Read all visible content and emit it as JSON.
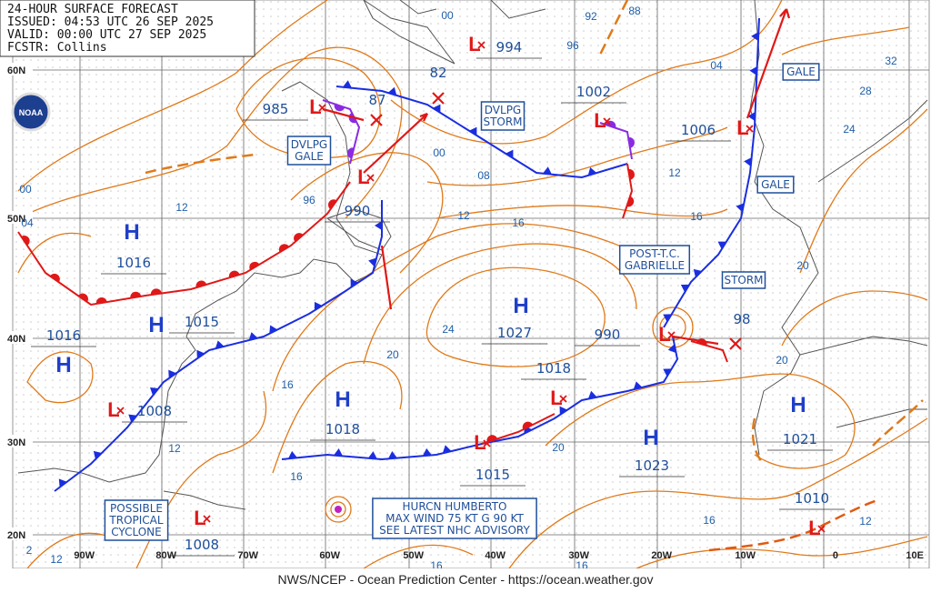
{
  "header": {
    "lines": [
      "24-HOUR SURFACE FORECAST",
      "ISSUED: 04:53 UTC 26 SEP 2025",
      "VALID:  00:00 UTC 27 SEP 2025",
      "FCSTR:  Collins"
    ]
  },
  "logo": "NOAA",
  "latitude_labels": [
    "60N",
    "50N",
    "40N",
    "30N",
    "20N"
  ],
  "longitude_labels": [
    "90W",
    "80W",
    "70W",
    "60W",
    "50W",
    "40W",
    "30W",
    "20W",
    "10W",
    "0",
    "10E"
  ],
  "pressure_systems": [
    {
      "symbol": "L",
      "pressure": 994
    },
    {
      "symbol": "L",
      "pressure": 985
    },
    {
      "symbol": "L",
      "pressure": 990
    },
    {
      "symbol": "L",
      "pressure": 1002
    },
    {
      "symbol": "L",
      "pressure": 1006
    },
    {
      "symbol": "H",
      "pressure": 1016
    },
    {
      "symbol": "H",
      "pressure": 1015
    },
    {
      "symbol": "H",
      "pressure": 1016
    },
    {
      "symbol": "L",
      "pressure": 1008
    },
    {
      "symbol": "L",
      "pressure": 1008
    },
    {
      "symbol": "H",
      "pressure": 1018
    },
    {
      "symbol": "H",
      "pressure": 1027
    },
    {
      "symbol": "L",
      "pressure": 990
    },
    {
      "symbol": "L",
      "pressure": 1018
    },
    {
      "symbol": "L",
      "pressure": 1015
    },
    {
      "symbol": "H",
      "pressure": 1023
    },
    {
      "symbol": "H",
      "pressure": 1021
    },
    {
      "symbol": "L",
      "pressure": 1010
    }
  ],
  "forecast_pressures": [
    "82",
    "87",
    "98"
  ],
  "isobar_labels": [
    "00",
    "92",
    "88",
    "96",
    "04",
    "32",
    "28",
    "24",
    "00",
    "04",
    "12",
    "96",
    "00",
    "08",
    "12",
    "16",
    "12",
    "16",
    "20",
    "24",
    "20",
    "16",
    "20",
    "12",
    "20",
    "16",
    "16",
    "12",
    "2",
    "12",
    "16",
    "16"
  ],
  "boxes": [
    {
      "lines": [
        "DVLPG",
        "GALE"
      ]
    },
    {
      "lines": [
        "DVLPG",
        "STORM"
      ]
    },
    {
      "lines": [
        "POST-T.C.",
        "GABRIELLE"
      ]
    },
    {
      "lines": [
        "STORM"
      ]
    },
    {
      "lines": [
        "GALE"
      ]
    },
    {
      "lines": [
        "GALE"
      ]
    },
    {
      "lines": [
        "POSSIBLE",
        "TROPICAL",
        "CYCLONE"
      ]
    },
    {
      "lines": [
        "HURCN HUMBERTO",
        "MAX WIND 75 KT G 90 KT",
        "SEE LATEST NHC ADVISORY"
      ]
    }
  ],
  "footer": "NWS/NCEP - Ocean Prediction Center - https://ocean.weather.gov"
}
